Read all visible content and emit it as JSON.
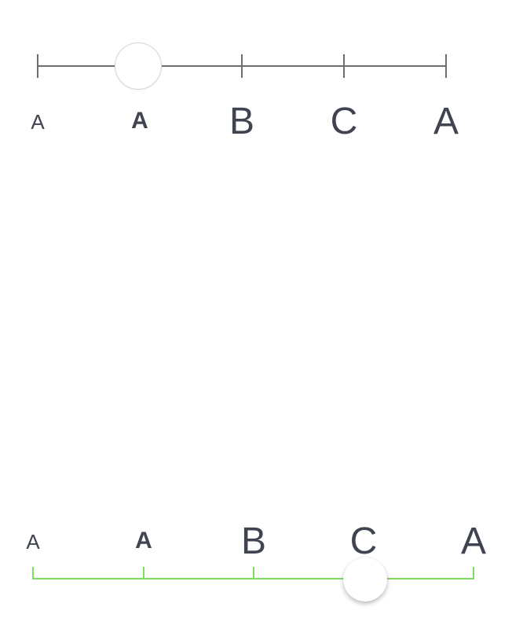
{
  "colors": {
    "top_track": "#6e6e6e",
    "bottom_track": "#7be05e",
    "label_text": "#3f4450"
  },
  "top_slider": {
    "labels": [
      "A",
      "A",
      "B",
      "C",
      "A"
    ],
    "selected_index": 1,
    "step_count": 5
  },
  "bottom_slider": {
    "labels": [
      "A",
      "A",
      "B",
      "C",
      "A"
    ],
    "selected_index": 3,
    "step_count": 5
  }
}
